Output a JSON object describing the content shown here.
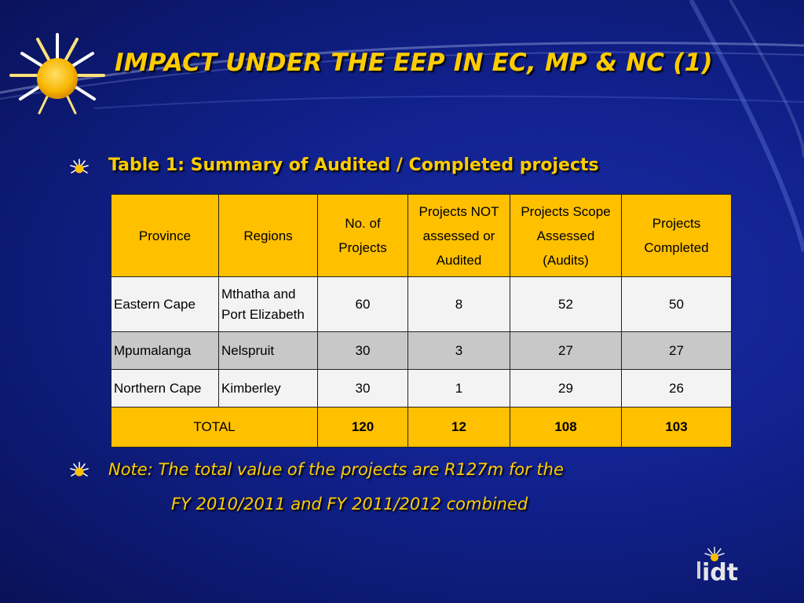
{
  "slide": {
    "title": "IMPACT UNDER THE EEP IN EC, MP & NC (1)",
    "caption": "Table 1: Summary of Audited / Completed projects",
    "note_line1": "Note: The total value of the projects are R127m for the",
    "note_line2": "FY 2010/2011 and FY 2011/2012 combined",
    "logo_text": "idt",
    "colors": {
      "accent": "#ffcc00",
      "table_header": "#ffc000",
      "background": "#10208a"
    }
  },
  "table": {
    "headers": {
      "province": "Province",
      "regions": "Regions",
      "no_of_projects": "No. of Projects",
      "not_assessed": "Projects NOT assessed or Audited",
      "scope_assessed": "Projects Scope Assessed (Audits)",
      "completed": "Projects Completed"
    },
    "rows": [
      {
        "province": "Eastern Cape",
        "region": "Mthatha and Port Elizabeth",
        "projects": "60",
        "not_assessed": "8",
        "assessed": "52",
        "completed": "50"
      },
      {
        "province": "Mpumalanga",
        "region": "Nelspruit",
        "projects": "30",
        "not_assessed": "3",
        "assessed": "27",
        "completed": "27"
      },
      {
        "province": "Northern Cape",
        "region": "Kimberley",
        "projects": "30",
        "not_assessed": "1",
        "assessed": "29",
        "completed": "26"
      }
    ],
    "total": {
      "label": "TOTAL",
      "projects": "120",
      "not_assessed": "12",
      "assessed": "108",
      "completed": "103"
    }
  }
}
